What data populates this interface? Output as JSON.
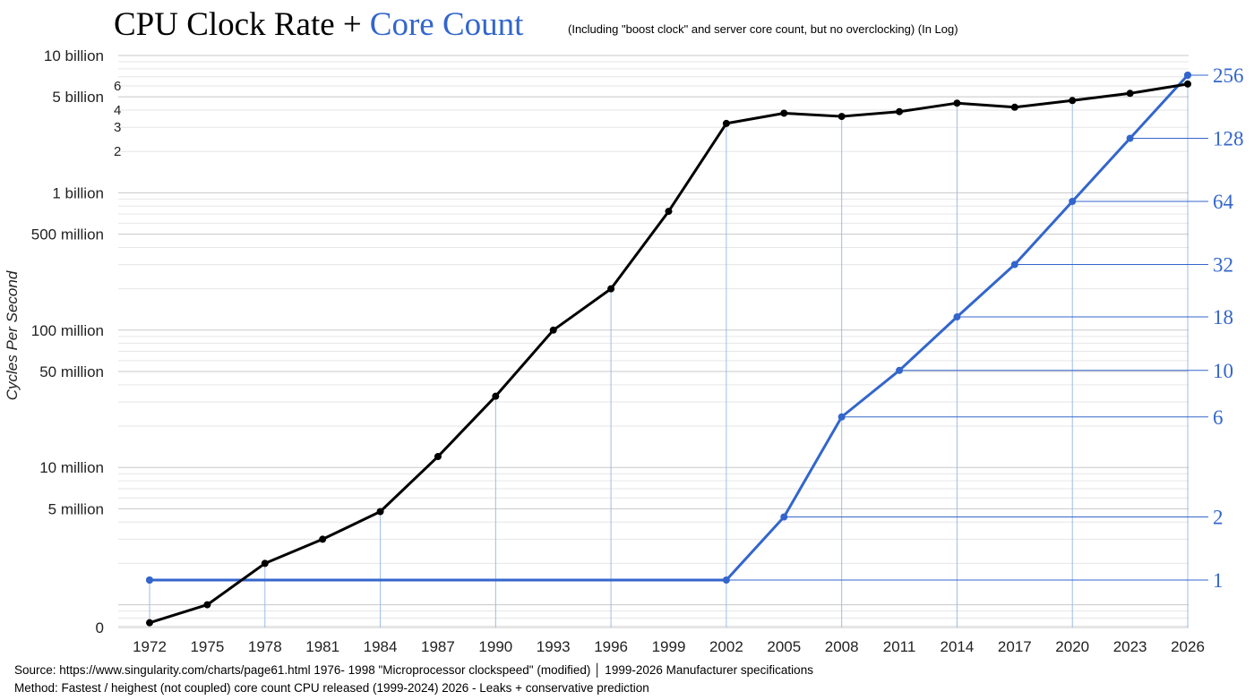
{
  "chart_data": {
    "type": "line",
    "title": "CPU Clock Rate +",
    "title_highlight": "Core Count",
    "subtitle": "(Including \"boost clock\" and server core count, but no overclocking) (In Log)",
    "ylabel": "Cycles Per Second",
    "y_scale": "log",
    "grid": true,
    "categories": [
      "1972",
      "1975",
      "1978",
      "1981",
      "1984",
      "1987",
      "1990",
      "1993",
      "1996",
      "1999",
      "2002",
      "2005",
      "2008",
      "2011",
      "2014",
      "2017",
      "2020",
      "2023",
      "2026"
    ],
    "left_axis_ticks": [
      "10 billion",
      "5 billion",
      "1 billion",
      "500 million",
      "100 million",
      "50 million",
      "10 million",
      "5 million",
      "0"
    ],
    "left_axis_minor_ticks": [
      "6",
      "4",
      "3",
      "2"
    ],
    "right_axis_ticks": [
      "256",
      "128",
      "64",
      "32",
      "18",
      "10",
      "6",
      "2",
      "1"
    ],
    "series": [
      {
        "name": "CPU Clock Rate",
        "color": "#000000",
        "axis": "left",
        "values": [
          740000,
          1000000,
          2000000,
          3000000,
          4770000,
          12000000,
          33000000,
          100000000,
          200000000,
          733000000,
          3200000000,
          3800000000,
          3600000000,
          3900000000,
          4500000000,
          4200000000,
          4700000000,
          5300000000,
          6200000000
        ]
      },
      {
        "name": "Core Count",
        "color": "#3366cc",
        "axis": "right",
        "values": [
          1,
          1,
          1,
          1,
          1,
          1,
          1,
          1,
          1,
          1,
          1,
          2,
          6,
          10,
          18,
          32,
          64,
          128,
          256
        ]
      }
    ]
  },
  "footer": {
    "source": "Source: https://www.singularity.com/charts/page61.html 1976- 1998 \"Microprocessor clockspeed\" (modified) │ 1999-2026 Manufacturer specifications",
    "method": "Method: Fastest / heighest (not coupled) core count CPU released (1999-2024)  2026 - Leaks + conservative prediction"
  }
}
